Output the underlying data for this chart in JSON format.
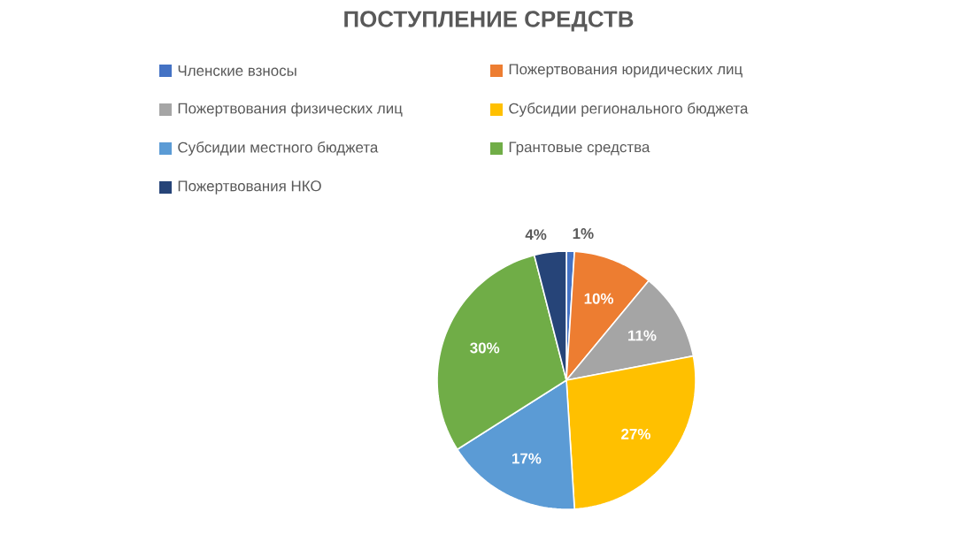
{
  "chart_data": {
    "type": "pie",
    "title": "ПОСТУПЛЕНИЕ СРЕДСТВ",
    "categories": [
      "Членские взносы",
      "Пожертвования юридических лиц",
      "Пожертвования физических лиц",
      "Субсидии регионального бюджета",
      "Субсидии местного бюджета",
      "Грантовые средства",
      "Пожертвования НКО"
    ],
    "values": [
      1,
      10,
      11,
      27,
      17,
      30,
      4
    ],
    "colors": [
      "#4472c4",
      "#ed7d31",
      "#a5a5a5",
      "#ffc000",
      "#5b9bd5",
      "#70ad47",
      "#264478"
    ],
    "value_labels": [
      "1%",
      "10%",
      "11%",
      "27%",
      "17%",
      "30%",
      "4%"
    ],
    "legend": "top"
  }
}
